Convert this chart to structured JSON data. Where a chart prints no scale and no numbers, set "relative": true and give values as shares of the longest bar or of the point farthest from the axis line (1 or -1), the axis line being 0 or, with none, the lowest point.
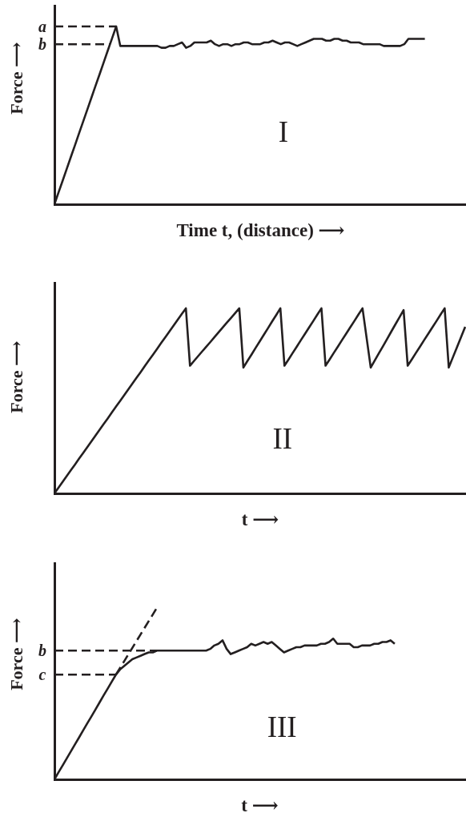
{
  "chart_data": [
    {
      "type": "line",
      "relative": true,
      "xlabel": "Time t, (distance) ⟶",
      "ylabel": "Force ⟶",
      "annotations": [
        "I"
      ],
      "categories": [
        null,
        null,
        null,
        null,
        null,
        null,
        null,
        null,
        null,
        null,
        null,
        null,
        null,
        null,
        null,
        null,
        null,
        null,
        null,
        null,
        null,
        null,
        null,
        null,
        null,
        null,
        null,
        null,
        null,
        null,
        null,
        null,
        null,
        null,
        null,
        null,
        null,
        null,
        null,
        null,
        null,
        null,
        null,
        null,
        null,
        null,
        null,
        null,
        null,
        null,
        null,
        null,
        null,
        null,
        null,
        null,
        null,
        null,
        null,
        null,
        null,
        null,
        null,
        null,
        null,
        null,
        null,
        null,
        null,
        null,
        null,
        null,
        null,
        null,
        null,
        null,
        null,
        null,
        null,
        null,
        null,
        null,
        null,
        null,
        null,
        null,
        null,
        null,
        null,
        null,
        null,
        null,
        null,
        null,
        null,
        null,
        null,
        null,
        null,
        null,
        null
      ],
      "ref_lines": [
        {
          "axis": "y",
          "value": 1,
          "label": "a",
          "line_style": "dashed",
          "color": "#231f20"
        },
        {
          "axis": "y",
          "value": 0.9,
          "label": "b",
          "line_style": "dashed",
          "color": "#231f20"
        }
      ],
      "series": [
        {
          "color": "#231f20",
          "values": [
            0,
            0.067,
            0.133,
            0.2,
            0.267,
            0.333,
            0.4,
            0.467,
            0.533,
            0.6,
            0.667,
            0.733,
            0.8,
            0.867,
            0.933,
            1,
            0.89,
            0.89,
            0.89,
            0.89,
            0.89,
            0.89,
            0.89,
            0.89,
            0.89,
            0.89,
            0.88,
            0.88,
            0.89,
            0.89,
            0.9,
            0.91,
            0.88,
            0.89,
            0.91,
            0.91,
            0.91,
            0.91,
            0.92,
            0.9,
            0.89,
            0.9,
            0.9,
            0.89,
            0.9,
            0.9,
            0.91,
            0.91,
            0.9,
            0.9,
            0.9,
            0.91,
            0.91,
            0.92,
            0.91,
            0.9,
            0.91,
            0.91,
            0.9,
            0.89,
            0.9,
            0.91,
            0.92,
            0.93,
            0.93,
            0.93,
            0.92,
            0.92,
            0.93,
            0.93,
            0.92,
            0.92,
            0.91,
            0.91,
            0.91,
            0.9,
            0.9,
            0.9,
            0.9,
            0.9,
            0.89,
            0.89,
            0.89,
            0.89,
            0.89,
            0.9,
            0.93,
            0.93,
            0.93,
            0.93,
            0.93,
            null,
            null,
            null,
            null,
            null,
            null,
            null,
            null,
            null,
            null
          ]
        }
      ]
    },
    {
      "type": "line",
      "relative": true,
      "xlabel": "t ⟶",
      "ylabel": "Force ⟶",
      "annotations": [
        "II"
      ],
      "categories": [
        null,
        null,
        null,
        null,
        null,
        null,
        null,
        null,
        null,
        null,
        null,
        null,
        null,
        null,
        null,
        null,
        null,
        null,
        null,
        null,
        null,
        null,
        null,
        null,
        null,
        null,
        null,
        null,
        null,
        null,
        null,
        null,
        null,
        null,
        null,
        null,
        null,
        null,
        null,
        null,
        null,
        null,
        null,
        null,
        null,
        null,
        null,
        null,
        null,
        null,
        null,
        null,
        null,
        null,
        null,
        null,
        null,
        null,
        null,
        null,
        null,
        null,
        null,
        null,
        null,
        null,
        null,
        null,
        null,
        null,
        null,
        null,
        null,
        null,
        null,
        null,
        null,
        null,
        null,
        null,
        null,
        null,
        null,
        null,
        null,
        null,
        null,
        null,
        null,
        null,
        null,
        null,
        null,
        null,
        null,
        null,
        null,
        null,
        null,
        null,
        null
      ],
      "series": [
        {
          "color": "#231f20",
          "values": [
            0,
            0.031,
            0.063,
            0.094,
            0.125,
            0.156,
            0.188,
            0.219,
            0.25,
            0.281,
            0.313,
            0.344,
            0.375,
            0.406,
            0.438,
            0.469,
            0.5,
            0.531,
            0.563,
            0.594,
            0.625,
            0.656,
            0.688,
            0.719,
            0.75,
            0.781,
            0.813,
            0.844,
            0.875,
            0.906,
            0.938,
            0.969,
            1,
            0.69,
            0.716,
            0.742,
            0.768,
            0.793,
            0.819,
            0.845,
            0.871,
            0.897,
            0.923,
            0.948,
            0.974,
            1,
            0.68,
            0.716,
            0.751,
            0.787,
            0.822,
            0.858,
            0.893,
            0.929,
            0.964,
            1,
            0.69,
            0.724,
            0.759,
            0.793,
            0.828,
            0.862,
            0.897,
            0.931,
            0.966,
            1,
            0.69,
            0.724,
            0.759,
            0.793,
            0.828,
            0.862,
            0.897,
            0.931,
            0.966,
            1,
            0.84,
            0.68,
            0.719,
            0.758,
            0.796,
            0.835,
            0.874,
            0.913,
            0.951,
            0.99,
            0.69,
            0.724,
            0.759,
            0.793,
            0.828,
            0.862,
            0.897,
            0.931,
            0.966,
            1,
            0.68,
            0.735,
            0.79,
            0.845,
            0.9
          ]
        }
      ]
    },
    {
      "type": "line",
      "relative": true,
      "xlabel": "t ⟶",
      "ylabel": "Force ⟶",
      "annotations": [
        "III"
      ],
      "categories": [
        null,
        null,
        null,
        null,
        null,
        null,
        null,
        null,
        null,
        null,
        null,
        null,
        null,
        null,
        null,
        null,
        null,
        null,
        null,
        null,
        null,
        null,
        null,
        null,
        null,
        null,
        null,
        null,
        null,
        null,
        null,
        null,
        null,
        null,
        null,
        null,
        null,
        null,
        null,
        null,
        null,
        null,
        null,
        null,
        null,
        null,
        null,
        null,
        null,
        null,
        null,
        null,
        null,
        null,
        null,
        null,
        null,
        null,
        null,
        null,
        null,
        null,
        null,
        null,
        null,
        null,
        null,
        null,
        null,
        null,
        null,
        null,
        null,
        null,
        null,
        null,
        null,
        null,
        null,
        null,
        null,
        null,
        null,
        null,
        null,
        null,
        null,
        null,
        null,
        null,
        null,
        null,
        null,
        null,
        null,
        null,
        null,
        null,
        null,
        null,
        null
      ],
      "ref_lines": [
        {
          "axis": "y",
          "value": 0.75,
          "label": "b",
          "line_style": "dashed",
          "color": "#231f20"
        },
        {
          "axis": "y",
          "value": 0.61,
          "label": "c",
          "line_style": "dashed",
          "color": "#231f20"
        }
      ],
      "series": [
        {
          "color": "#231f20",
          "values": [
            0,
            0.041,
            0.081,
            0.122,
            0.163,
            0.204,
            0.244,
            0.285,
            0.326,
            0.366,
            0.407,
            0.448,
            0.489,
            0.529,
            0.57,
            0.61,
            0.64,
            0.66,
            0.68,
            0.7,
            0.71,
            0.72,
            0.73,
            0.74,
            0.74,
            0.75,
            0.75,
            0.75,
            0.75,
            0.75,
            0.75,
            0.75,
            0.75,
            0.75,
            0.75,
            0.75,
            0.75,
            0.75,
            0.76,
            0.78,
            0.79,
            0.81,
            0.76,
            0.73,
            0.74,
            0.75,
            0.76,
            0.77,
            0.79,
            0.78,
            0.79,
            0.8,
            0.79,
            0.8,
            0.78,
            0.76,
            0.74,
            0.75,
            0.76,
            0.77,
            0.77,
            0.78,
            0.78,
            0.78,
            0.78,
            0.79,
            0.79,
            0.8,
            0.82,
            0.79,
            0.79,
            0.79,
            0.79,
            0.77,
            0.77,
            0.78,
            0.78,
            0.78,
            0.79,
            0.79,
            0.8,
            0.8,
            0.81,
            0.79,
            null,
            null,
            null,
            null,
            null,
            null,
            null,
            null,
            null,
            null,
            null,
            null,
            null,
            null,
            null,
            null,
            null
          ]
        },
        {
          "color": "#231f20",
          "line_style": "dashed",
          "values": [
            null,
            null,
            null,
            null,
            null,
            null,
            null,
            null,
            null,
            null,
            null,
            null,
            null,
            null,
            null,
            0.61,
            0.649,
            0.688,
            0.727,
            0.766,
            0.805,
            0.844,
            0.883,
            0.922,
            0.961,
            1,
            null,
            null,
            null,
            null,
            null,
            null,
            null,
            null,
            null,
            null,
            null,
            null,
            null,
            null,
            null,
            null,
            null,
            null,
            null,
            null,
            null,
            null,
            null,
            null,
            null,
            null,
            null,
            null,
            null,
            null,
            null,
            null,
            null,
            null,
            null,
            null,
            null,
            null,
            null,
            null,
            null,
            null,
            null,
            null,
            null,
            null,
            null,
            null,
            null,
            null,
            null,
            null,
            null,
            null,
            null,
            null,
            null,
            null,
            null,
            null,
            null,
            null,
            null,
            null,
            null,
            null,
            null,
            null,
            null,
            null,
            null,
            null,
            null,
            null,
            null
          ]
        }
      ]
    }
  ]
}
